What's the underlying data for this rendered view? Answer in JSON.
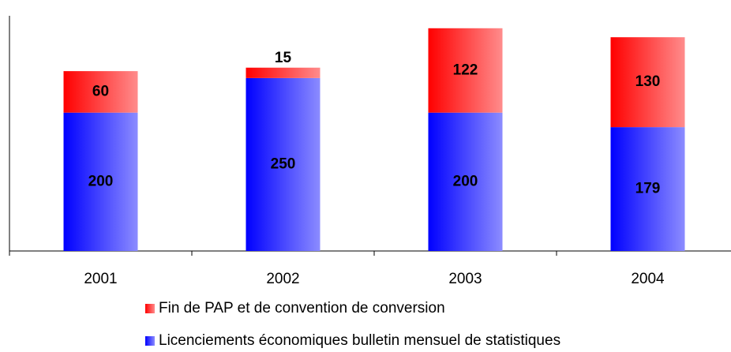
{
  "chart_data": {
    "type": "stacked-bar",
    "categories": [
      "2001",
      "2002",
      "2003",
      "2004"
    ],
    "series": [
      {
        "name": "Licenciements économiques bulletin mensuel de statistiques",
        "color": "#0000ff",
        "values": [
          200,
          250,
          200,
          179
        ]
      },
      {
        "name": "Fin de PAP et de convention de conversion",
        "color": "#ff0000",
        "values": [
          60,
          15,
          122,
          130
        ]
      }
    ],
    "ylim": [
      0,
      340
    ]
  }
}
